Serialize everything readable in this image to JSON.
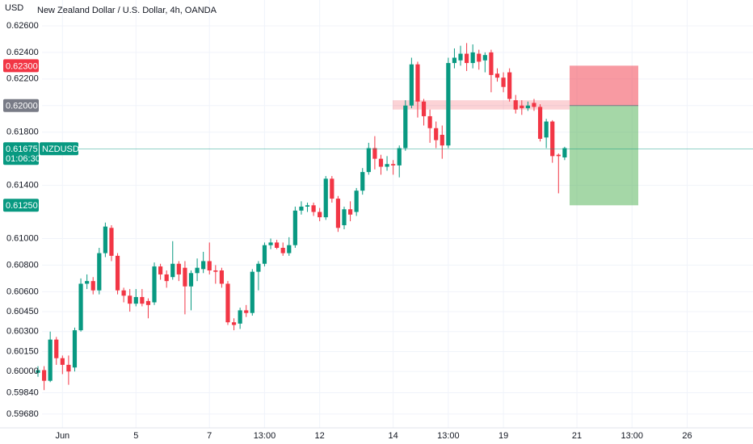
{
  "chart_data": {
    "type": "candlestick",
    "title": "New Zealand Dollar / U.S. Dollar, 4h, OANDA",
    "unit": "USD",
    "up_color": "#089981",
    "down_color": "#f23645",
    "grid": true,
    "ylim": [
      0.59576,
      0.62794
    ],
    "yticks": [
      {
        "value": 0.626,
        "label": "0.62600"
      },
      {
        "value": 0.624,
        "label": "0.62400"
      },
      {
        "value": 0.622,
        "label": "0.62200"
      },
      {
        "value": 0.62,
        "label": "0.62000"
      },
      {
        "value": 0.618,
        "label": "0.61800"
      },
      {
        "value": 0.614,
        "label": "0.61400"
      },
      {
        "value": 0.61,
        "label": "0.61000"
      },
      {
        "value": 0.608,
        "label": "0.60800"
      },
      {
        "value": 0.606,
        "label": "0.60600"
      },
      {
        "value": 0.6045,
        "label": "0.60450"
      },
      {
        "value": 0.603,
        "label": "0.60300"
      },
      {
        "value": 0.6015,
        "label": "0.60150"
      },
      {
        "value": 0.6,
        "label": "0.60000"
      },
      {
        "value": 0.5984,
        "label": "0.59840"
      },
      {
        "value": 0.5968,
        "label": "0.59680"
      }
    ],
    "categories": [
      null,
      null,
      null,
      null,
      "Jun",
      null,
      null,
      null,
      null,
      null,
      null,
      null,
      null,
      null,
      null,
      null,
      "5",
      null,
      null,
      null,
      null,
      null,
      null,
      null,
      null,
      null,
      null,
      null,
      "7",
      null,
      null,
      null,
      null,
      null,
      null,
      null,
      null,
      "13:00",
      null,
      null,
      null,
      null,
      null,
      null,
      null,
      null,
      "12",
      null,
      null,
      null,
      null,
      null,
      null,
      null,
      null,
      null,
      null,
      null,
      "14",
      null,
      null,
      null,
      null,
      null,
      null,
      null,
      null,
      "13:00",
      null,
      null,
      null,
      null,
      null,
      null,
      null,
      null,
      "19",
      null,
      null,
      null,
      null,
      null,
      null,
      null,
      null,
      null,
      null,
      null,
      "21",
      null,
      null,
      null,
      null,
      null,
      null,
      null,
      null,
      "13:00",
      null,
      null,
      null,
      null,
      null,
      null,
      null,
      null,
      "26",
      null,
      null,
      null,
      null,
      null,
      null,
      null,
      null,
      null,
      null
    ],
    "open": [
      0.5999,
      0.6001,
      0.5993,
      0.6024,
      0.601,
      0.6005,
      0.6003,
      0.6031,
      0.6066,
      0.6068,
      0.6061,
      0.6089,
      0.6108,
      0.6087,
      0.6061,
      0.6057,
      0.6051,
      0.6056,
      0.6053,
      0.6052,
      0.6079,
      0.6073,
      0.6071,
      0.6081,
      0.6078,
      0.6064,
      0.6074,
      0.6077,
      0.6083,
      0.6076,
      0.6076,
      0.6066,
      0.6037,
      0.6036,
      0.6046,
      0.6044,
      0.6075,
      0.6081,
      0.6095,
      0.6097,
      0.6093,
      0.6089,
      0.6095,
      0.6121,
      0.6124,
      0.6125,
      0.612,
      0.6116,
      0.6145,
      0.613,
      0.611,
      0.6122,
      0.612,
      0.6136,
      0.615,
      0.6168,
      0.616,
      0.6154,
      0.6156,
      0.6155,
      0.6168,
      0.62,
      0.6231,
      0.6203,
      0.6192,
      0.6183,
      0.6178,
      0.617,
      0.6232,
      0.6234,
      0.6239,
      0.6232,
      0.6239,
      0.6234,
      0.624,
      0.6224,
      0.6221,
      0.6225,
      0.6204,
      0.62,
      0.6198,
      0.6202,
      0.6199,
      0.6176,
      0.6188,
      0.6163,
      0.6161,
      null,
      null,
      null,
      null,
      null,
      null,
      null,
      null,
      null,
      null,
      null,
      null,
      null,
      null,
      null,
      null,
      null,
      null,
      null,
      null,
      null,
      null,
      null,
      null,
      null,
      null,
      null,
      null,
      null,
      null
    ],
    "high": [
      0.6004,
      0.6004,
      0.603,
      0.6026,
      0.6012,
      0.6012,
      0.6033,
      0.607,
      0.6073,
      0.6071,
      0.6093,
      0.6112,
      0.611,
      0.6089,
      0.6063,
      0.6062,
      0.6062,
      0.6062,
      0.6055,
      0.6082,
      0.6081,
      0.6076,
      0.6098,
      0.6083,
      0.6083,
      0.6076,
      0.6085,
      0.609,
      0.6097,
      0.608,
      0.6078,
      0.6068,
      0.604,
      0.6048,
      0.605,
      0.6077,
      0.6083,
      0.6097,
      0.61,
      0.6099,
      0.6097,
      0.6101,
      0.6124,
      0.6128,
      0.6127,
      0.6127,
      0.6123,
      0.6147,
      0.6147,
      0.6132,
      0.6124,
      0.6128,
      0.6138,
      0.6153,
      0.6172,
      0.6177,
      0.6163,
      0.6162,
      0.6159,
      0.617,
      0.6204,
      0.6236,
      0.6233,
      0.6205,
      0.6197,
      0.6188,
      0.6185,
      0.6236,
      0.6243,
      0.6245,
      0.6247,
      0.6246,
      0.6242,
      0.624,
      0.6242,
      0.6228,
      0.6225,
      0.6228,
      0.6208,
      0.6204,
      0.6203,
      0.6205,
      0.6201,
      0.619,
      0.6189,
      0.6164,
      0.6169,
      null,
      null,
      null,
      null,
      null,
      null,
      null,
      null,
      null,
      null,
      null,
      null,
      null,
      null,
      null,
      null,
      null,
      null,
      null,
      null,
      null,
      null,
      null,
      null,
      null,
      null,
      null,
      null,
      null,
      null
    ],
    "low": [
      0.5996,
      0.5986,
      0.5992,
      0.6005,
      0.5998,
      0.599,
      0.6,
      0.603,
      0.6062,
      0.6058,
      0.6058,
      0.6086,
      0.6083,
      0.6058,
      0.6052,
      0.6045,
      0.6049,
      0.6049,
      0.604,
      0.605,
      0.6069,
      0.6063,
      0.6069,
      0.6068,
      0.6043,
      0.6046,
      0.6068,
      0.6074,
      0.6073,
      0.6066,
      0.6063,
      0.6035,
      0.6031,
      0.6032,
      0.6041,
      0.6042,
      0.6061,
      0.6079,
      0.6092,
      0.6092,
      0.6087,
      0.6087,
      0.6093,
      0.6118,
      0.612,
      0.6117,
      0.6113,
      0.6114,
      0.6127,
      0.6105,
      0.6107,
      0.6113,
      0.6117,
      0.6133,
      0.6148,
      0.6152,
      0.6148,
      0.6151,
      0.6148,
      0.6146,
      0.6166,
      0.6198,
      0.6191,
      0.6185,
      0.6172,
      0.6168,
      0.616,
      0.6168,
      0.6228,
      0.623,
      0.6226,
      0.6228,
      0.6227,
      0.6225,
      0.621,
      0.6218,
      0.621,
      0.6203,
      0.6194,
      0.6193,
      0.6196,
      0.6196,
      0.6173,
      0.6168,
      0.6157,
      0.6134,
      0.6159,
      null,
      null,
      null,
      null,
      null,
      null,
      null,
      null,
      null,
      null,
      null,
      null,
      null,
      null,
      null,
      null,
      null,
      null,
      null,
      null,
      null,
      null,
      null,
      null,
      null,
      null,
      null,
      null,
      null,
      null
    ],
    "close": [
      0.6001,
      0.5993,
      0.6024,
      0.601,
      0.6005,
      0.6,
      0.6031,
      0.6066,
      0.6068,
      0.6061,
      0.6089,
      0.6109,
      0.6087,
      0.6061,
      0.6057,
      0.6051,
      0.6056,
      0.6051,
      0.605,
      0.6079,
      0.6073,
      0.6068,
      0.6081,
      0.6073,
      0.6064,
      0.6074,
      0.6078,
      0.6083,
      0.6076,
      0.6075,
      0.6066,
      0.6037,
      0.6035,
      0.6046,
      0.6044,
      0.6075,
      0.6081,
      0.6095,
      0.6097,
      0.6093,
      0.6089,
      0.6095,
      0.6121,
      0.6124,
      0.6125,
      0.612,
      0.6116,
      0.6145,
      0.613,
      0.6108,
      0.6122,
      0.6118,
      0.6136,
      0.615,
      0.6168,
      0.616,
      0.6154,
      0.6156,
      0.6155,
      0.6168,
      0.62,
      0.6231,
      0.6203,
      0.6192,
      0.6183,
      0.6174,
      0.617,
      0.6232,
      0.6236,
      0.6239,
      0.6232,
      0.624,
      0.6233,
      0.6238,
      0.6223,
      0.6221,
      0.6214,
      0.6205,
      0.6197,
      0.6198,
      0.62,
      0.6199,
      0.6175,
      0.6188,
      0.6162,
      0.6162,
      0.6168,
      null,
      null,
      null,
      null,
      null,
      null,
      null,
      null,
      null,
      null,
      null,
      null,
      null,
      null,
      null,
      null,
      null,
      null,
      null,
      null,
      null,
      null,
      null,
      null,
      null,
      null,
      null,
      null,
      null,
      null
    ],
    "zone": {
      "low": 0.6197,
      "high": 0.6204,
      "color": "#f23645"
    },
    "current": {
      "value": 0.61675,
      "label": "0.61675",
      "symbol": "NZDUSD",
      "countdown": "01:06:30",
      "color": "#089981"
    },
    "position": {
      "take_profit": {
        "value": 0.623,
        "label": "0.62300",
        "color": "#f23645"
      },
      "entry": {
        "value": 0.62,
        "label": "0.62000",
        "color": "#787b86"
      },
      "stop_loss": {
        "value": 0.6125,
        "label": "0.61250",
        "color": "#089981"
      }
    }
  }
}
